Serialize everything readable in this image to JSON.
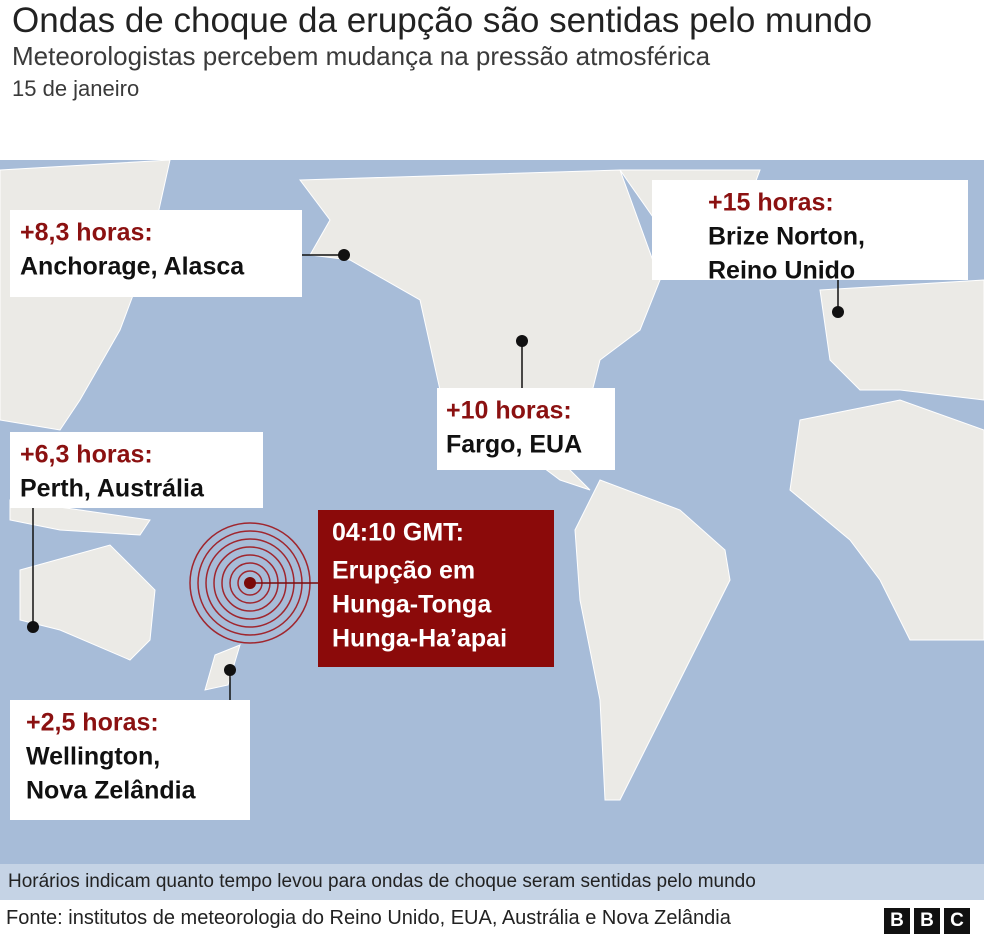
{
  "header": {
    "title": "Ondas de choque da erupção são sentidas pelo mundo",
    "subtitle": "Meteorologistas percebem mudança na pressão atmosférica",
    "date": "15 de janeiro"
  },
  "labels": [
    {
      "time": "+8,3 horas:",
      "place": [
        "Anchorage, Alasca"
      ]
    },
    {
      "time": "+15 horas:",
      "place": [
        "Brize Norton,",
        "Reino Unido"
      ]
    },
    {
      "time": "+10 horas:",
      "place": [
        "Fargo, EUA"
      ]
    },
    {
      "time": "+6,3 horas:",
      "place": [
        "Perth, Austrália"
      ]
    },
    {
      "time": "+2,5 horas:",
      "place": [
        "Wellington,",
        "Nova Zelândia"
      ]
    }
  ],
  "eruption": {
    "time": "04:10 GMT:",
    "place": [
      "Erupção em",
      "Hunga-Tonga",
      "Hunga-Ha’apai"
    ]
  },
  "note": "Horários indicam quanto tempo levou para ondas de choque seram sentidas pelo mundo",
  "footer": {
    "source": "Fonte: institutos de meteorologia do Reino Unido, EUA, Austrália e Nova Zelândia",
    "logo": [
      "B",
      "B",
      "C"
    ]
  }
}
